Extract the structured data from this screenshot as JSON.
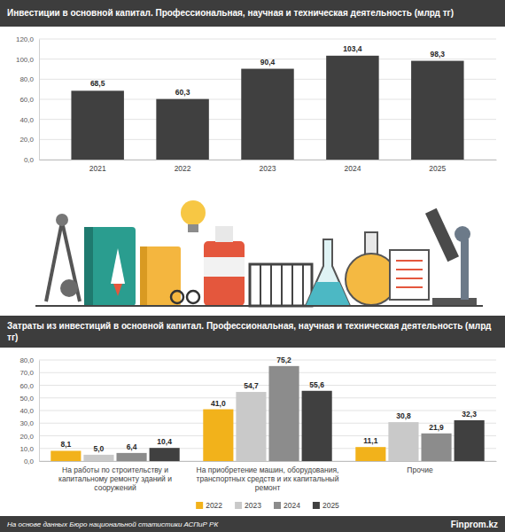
{
  "chart_data": [
    {
      "type": "bar",
      "title": "Инвестиции в основной капитал. Профессиональная, научная и техническая деятельность (млрд тг)",
      "categories": [
        "2021",
        "2022",
        "2023",
        "2024",
        "2025"
      ],
      "values": [
        68.5,
        60.3,
        90.4,
        103.4,
        98.3
      ],
      "value_labels": [
        "68,5",
        "60,3",
        "90,4",
        "103,4",
        "98,3"
      ],
      "color": "#404040",
      "ylim": [
        0,
        120
      ],
      "yticks": [
        {
          "value": 0,
          "label": "0,0"
        },
        {
          "value": 20,
          "label": "20,0"
        },
        {
          "value": 40,
          "label": "40,0"
        },
        {
          "value": 60,
          "label": "60,0"
        },
        {
          "value": 80,
          "label": "80,0"
        },
        {
          "value": 100,
          "label": "100,0"
        },
        {
          "value": 120,
          "label": "120,0"
        }
      ],
      "grid": true,
      "data_labels": true
    },
    {
      "type": "bar",
      "title": "Затраты из инвестиций в основной капитал. Профессиональная, научная и техническая деятельность (млрд тг)",
      "categories": [
        "На работы по строительству и капитальному ремонту зданий и сооружений",
        "На приобретение машин, оборудования, транспортных средств и их капитальный ремонт",
        "Прочие"
      ],
      "series": [
        {
          "name": "2022",
          "color": "#f2b21b",
          "values": [
            8.1,
            41.0,
            11.1
          ],
          "value_labels": [
            "8,1",
            "41,0",
            "11,1"
          ]
        },
        {
          "name": "2023",
          "color": "#c9c9c9",
          "values": [
            5.0,
            54.7,
            30.8
          ],
          "value_labels": [
            "5,0",
            "54,7",
            "30,8"
          ]
        },
        {
          "name": "2024",
          "color": "#8c8c8c",
          "values": [
            6.4,
            75.2,
            21.9
          ],
          "value_labels": [
            "6,4",
            "75,2",
            "21,9"
          ]
        },
        {
          "name": "2025",
          "color": "#404040",
          "values": [
            10.4,
            55.6,
            32.3
          ],
          "value_labels": [
            "10,4",
            "55,6",
            "32,3"
          ]
        }
      ],
      "ylim": [
        0,
        80
      ],
      "yticks": [
        {
          "value": 0,
          "label": "0,0"
        },
        {
          "value": 10,
          "label": "10,0"
        },
        {
          "value": 20,
          "label": "20,0"
        },
        {
          "value": 30,
          "label": "30,0"
        },
        {
          "value": 40,
          "label": "40,0"
        },
        {
          "value": 50,
          "label": "50,0"
        },
        {
          "value": 60,
          "label": "60,0"
        },
        {
          "value": 70,
          "label": "70,0"
        },
        {
          "value": 80,
          "label": "80,0"
        }
      ],
      "grid": true,
      "data_labels": true,
      "legend": "bottom"
    }
  ],
  "source": "На основе данных Бюро национальной статистики АСПиР РК",
  "brand": "Finprom.kz"
}
